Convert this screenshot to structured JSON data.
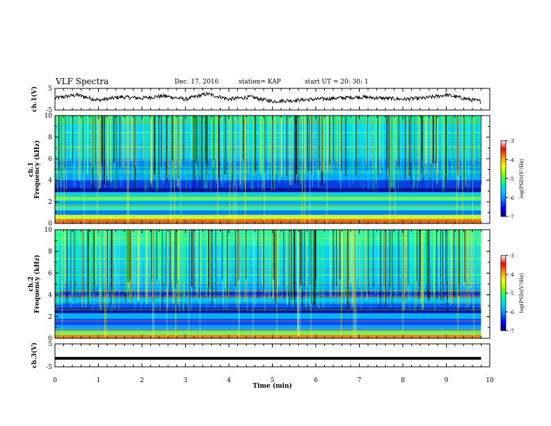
{
  "header": {
    "title": "VLF Spectra",
    "date": "Dec. 17, 2016",
    "station": "station= KAP",
    "start": "start  UT  =   20: 30: 1"
  },
  "chart_data": [
    {
      "type": "line",
      "name": "ch1-voltage",
      "ylabel": "ch.1(V)",
      "ylim": [
        -5,
        5
      ],
      "yticks": [
        "5",
        "-5"
      ],
      "xlim": [
        0,
        10
      ],
      "x": [
        0,
        0.5,
        1,
        1.5,
        2,
        2.5,
        3,
        3.5,
        4,
        4.5,
        5,
        5.5,
        6,
        6.5,
        7,
        7.5,
        8,
        8.5,
        9,
        9.5,
        9.8
      ],
      "y": [
        0.5,
        2,
        -0.5,
        1,
        0.5,
        1.5,
        0,
        2.5,
        0,
        1,
        -1,
        -0.5,
        0,
        0.5,
        1,
        0.5,
        0,
        0.5,
        2,
        0,
        -1
      ]
    },
    {
      "type": "heatmap",
      "name": "ch1-spectrogram",
      "ylabel": "ch.1\nFrequency (kHz)",
      "ylim": [
        0,
        10
      ],
      "yticks": [
        "0",
        "2",
        "4",
        "6",
        "8",
        "10"
      ],
      "xlim": [
        0,
        10
      ],
      "colorbar": {
        "label": "log(PSD)(V²/Hz)",
        "ticks": [
          "-3",
          "-4",
          "-5",
          "-6",
          "-7"
        ],
        "range": [
          -7,
          -3
        ]
      }
    },
    {
      "type": "heatmap",
      "name": "ch2-spectrogram",
      "ylabel": "ch.2\nFrequency (kHz)",
      "ylim": [
        0,
        10
      ],
      "yticks": [
        "0",
        "2",
        "4",
        "6",
        "8",
        "10"
      ],
      "xlim": [
        0,
        10
      ],
      "colorbar": {
        "label": "log(PSD)(V²/Hz)",
        "ticks": [
          "-3",
          "-4",
          "-5",
          "-6",
          "-7"
        ],
        "range": [
          -7,
          -3
        ]
      }
    },
    {
      "type": "line",
      "name": "ch3-voltage",
      "ylabel": "ch.3(V)",
      "ylim": [
        -5,
        5
      ],
      "yticks": [
        "5",
        "-5"
      ],
      "xlim": [
        0,
        10
      ],
      "x": [
        0,
        9.8
      ],
      "y": [
        -1.3,
        -1.3
      ]
    }
  ],
  "xaxis": {
    "label": "Time  (min)",
    "ticks": [
      "0",
      "1",
      "2",
      "3",
      "4",
      "5",
      "6",
      "7",
      "8",
      "9",
      "10"
    ]
  },
  "colors": {
    "colormap": [
      "#000080",
      "#0000ff",
      "#0080ff",
      "#00c8ff",
      "#00ff9a",
      "#80ff00",
      "#ffff00",
      "#ff9a00",
      "#ff0000",
      "#ffffff"
    ]
  }
}
